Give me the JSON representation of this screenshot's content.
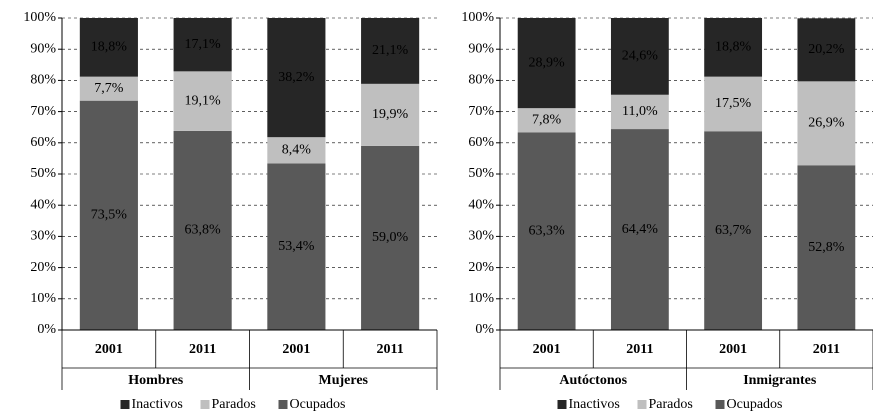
{
  "chart_data": [
    {
      "type": "bar",
      "stacked": true,
      "categories": [
        "2001",
        "2011",
        "2001",
        "2011"
      ],
      "groups": [
        "Hombres",
        "Mujeres"
      ],
      "series": [
        {
          "name": "Inactivos",
          "color": "#262626",
          "values": [
            18.8,
            17.1,
            38.2,
            21.1
          ],
          "value_labels": [
            "18,8%",
            "17,1%",
            "38,2%",
            "21,1%"
          ]
        },
        {
          "name": "Parados",
          "color": "#bfbfbf",
          "values": [
            7.7,
            19.1,
            8.4,
            19.9
          ],
          "value_labels": [
            "7,7%",
            "19,1%",
            "8,4%",
            "19,9%"
          ]
        },
        {
          "name": "Ocupados",
          "color": "#595959",
          "values": [
            73.5,
            63.8,
            53.4,
            59.0
          ],
          "value_labels": [
            "73,5%",
            "63,8%",
            "53,4%",
            "59,0%"
          ]
        }
      ],
      "ylim": [
        0,
        100
      ],
      "yticks": [
        {
          "value": 0,
          "label": "0%"
        },
        {
          "value": 10,
          "label": "10%"
        },
        {
          "value": 20,
          "label": "20%"
        },
        {
          "value": 30,
          "label": "30%"
        },
        {
          "value": 40,
          "label": "40%"
        },
        {
          "value": 50,
          "label": "50%"
        },
        {
          "value": 60,
          "label": "60%"
        },
        {
          "value": 70,
          "label": "70%"
        },
        {
          "value": 80,
          "label": "80%"
        },
        {
          "value": 90,
          "label": "90%"
        },
        {
          "value": 100,
          "label": "100%"
        }
      ],
      "grid": true,
      "legend": "bottom"
    },
    {
      "type": "bar",
      "stacked": true,
      "categories": [
        "2001",
        "2011",
        "2001",
        "2011"
      ],
      "groups": [
        "Autóctonos",
        "Inmigrantes"
      ],
      "series": [
        {
          "name": "Inactivos",
          "color": "#262626",
          "values": [
            28.9,
            24.6,
            18.8,
            20.2
          ],
          "value_labels": [
            "28,9%",
            "24,6%",
            "18,8%",
            "20,2%"
          ]
        },
        {
          "name": "Parados",
          "color": "#bfbfbf",
          "values": [
            7.8,
            11.0,
            17.5,
            26.9
          ],
          "value_labels": [
            "7,8%",
            "11,0%",
            "17,5%",
            "26,9%"
          ]
        },
        {
          "name": "Ocupados",
          "color": "#595959",
          "values": [
            63.3,
            64.4,
            63.7,
            52.8
          ],
          "value_labels": [
            "63,3%",
            "64,4%",
            "63,7%",
            "52,8%"
          ]
        }
      ],
      "ylim": [
        0,
        100
      ],
      "yticks": [
        {
          "value": 0,
          "label": "0%"
        },
        {
          "value": 10,
          "label": "10%"
        },
        {
          "value": 20,
          "label": "20%"
        },
        {
          "value": 30,
          "label": "30%"
        },
        {
          "value": 40,
          "label": "40%"
        },
        {
          "value": 50,
          "label": "50%"
        },
        {
          "value": 60,
          "label": "60%"
        },
        {
          "value": 70,
          "label": "70%"
        },
        {
          "value": 80,
          "label": "80%"
        },
        {
          "value": 90,
          "label": "90%"
        },
        {
          "value": 100,
          "label": "100%"
        }
      ],
      "grid": true,
      "legend": "bottom"
    }
  ]
}
